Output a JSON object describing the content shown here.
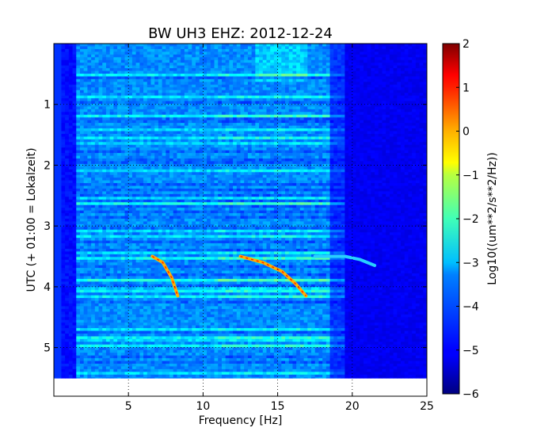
{
  "chart_data": {
    "type": "heatmap",
    "title": "BW UH3 EHZ: 2012-12-24",
    "xlabel": "Frequency [Hz]",
    "ylabel": "UTC (+ 01:00 = Lokalzeit)",
    "xlim": [
      0,
      25
    ],
    "ylim": [
      5.8,
      0
    ],
    "x_ticks": [
      5,
      10,
      15,
      20,
      25
    ],
    "x_tick_labels": [
      "5",
      "10",
      "15",
      "20",
      "25"
    ],
    "y_ticks": [
      1,
      2,
      3,
      4,
      5
    ],
    "y_tick_labels": [
      "1",
      "2",
      "3",
      "4",
      "5"
    ],
    "data_time_range": [
      0,
      5.5
    ],
    "grid": true,
    "colormap": "jet",
    "colorbar": {
      "label": "Log10((um**2/s**2/Hz))",
      "range": [
        -6,
        2
      ],
      "ticks": [
        2,
        1,
        0,
        -1,
        -2,
        -3,
        -4,
        -5,
        -6
      ],
      "tick_labels": [
        "2",
        "1",
        "0",
        "−1",
        "−2",
        "−3",
        "−4",
        "−5",
        "−6"
      ]
    },
    "features": [
      {
        "type": "gliding-tone",
        "points": [
          [
            6.6,
            3.5
          ],
          [
            7.3,
            3.6
          ],
          [
            7.9,
            3.85
          ],
          [
            8.3,
            4.15
          ]
        ]
      },
      {
        "type": "gliding-tone",
        "points": [
          [
            12.5,
            3.5
          ],
          [
            14.0,
            3.6
          ],
          [
            15.3,
            3.75
          ],
          [
            16.2,
            3.95
          ],
          [
            16.9,
            4.15
          ]
        ]
      },
      {
        "type": "tone-tail",
        "points": [
          [
            17.5,
            3.5
          ],
          [
            19.5,
            3.5
          ],
          [
            20.5,
            3.55
          ],
          [
            21.5,
            3.65
          ]
        ]
      }
    ]
  }
}
